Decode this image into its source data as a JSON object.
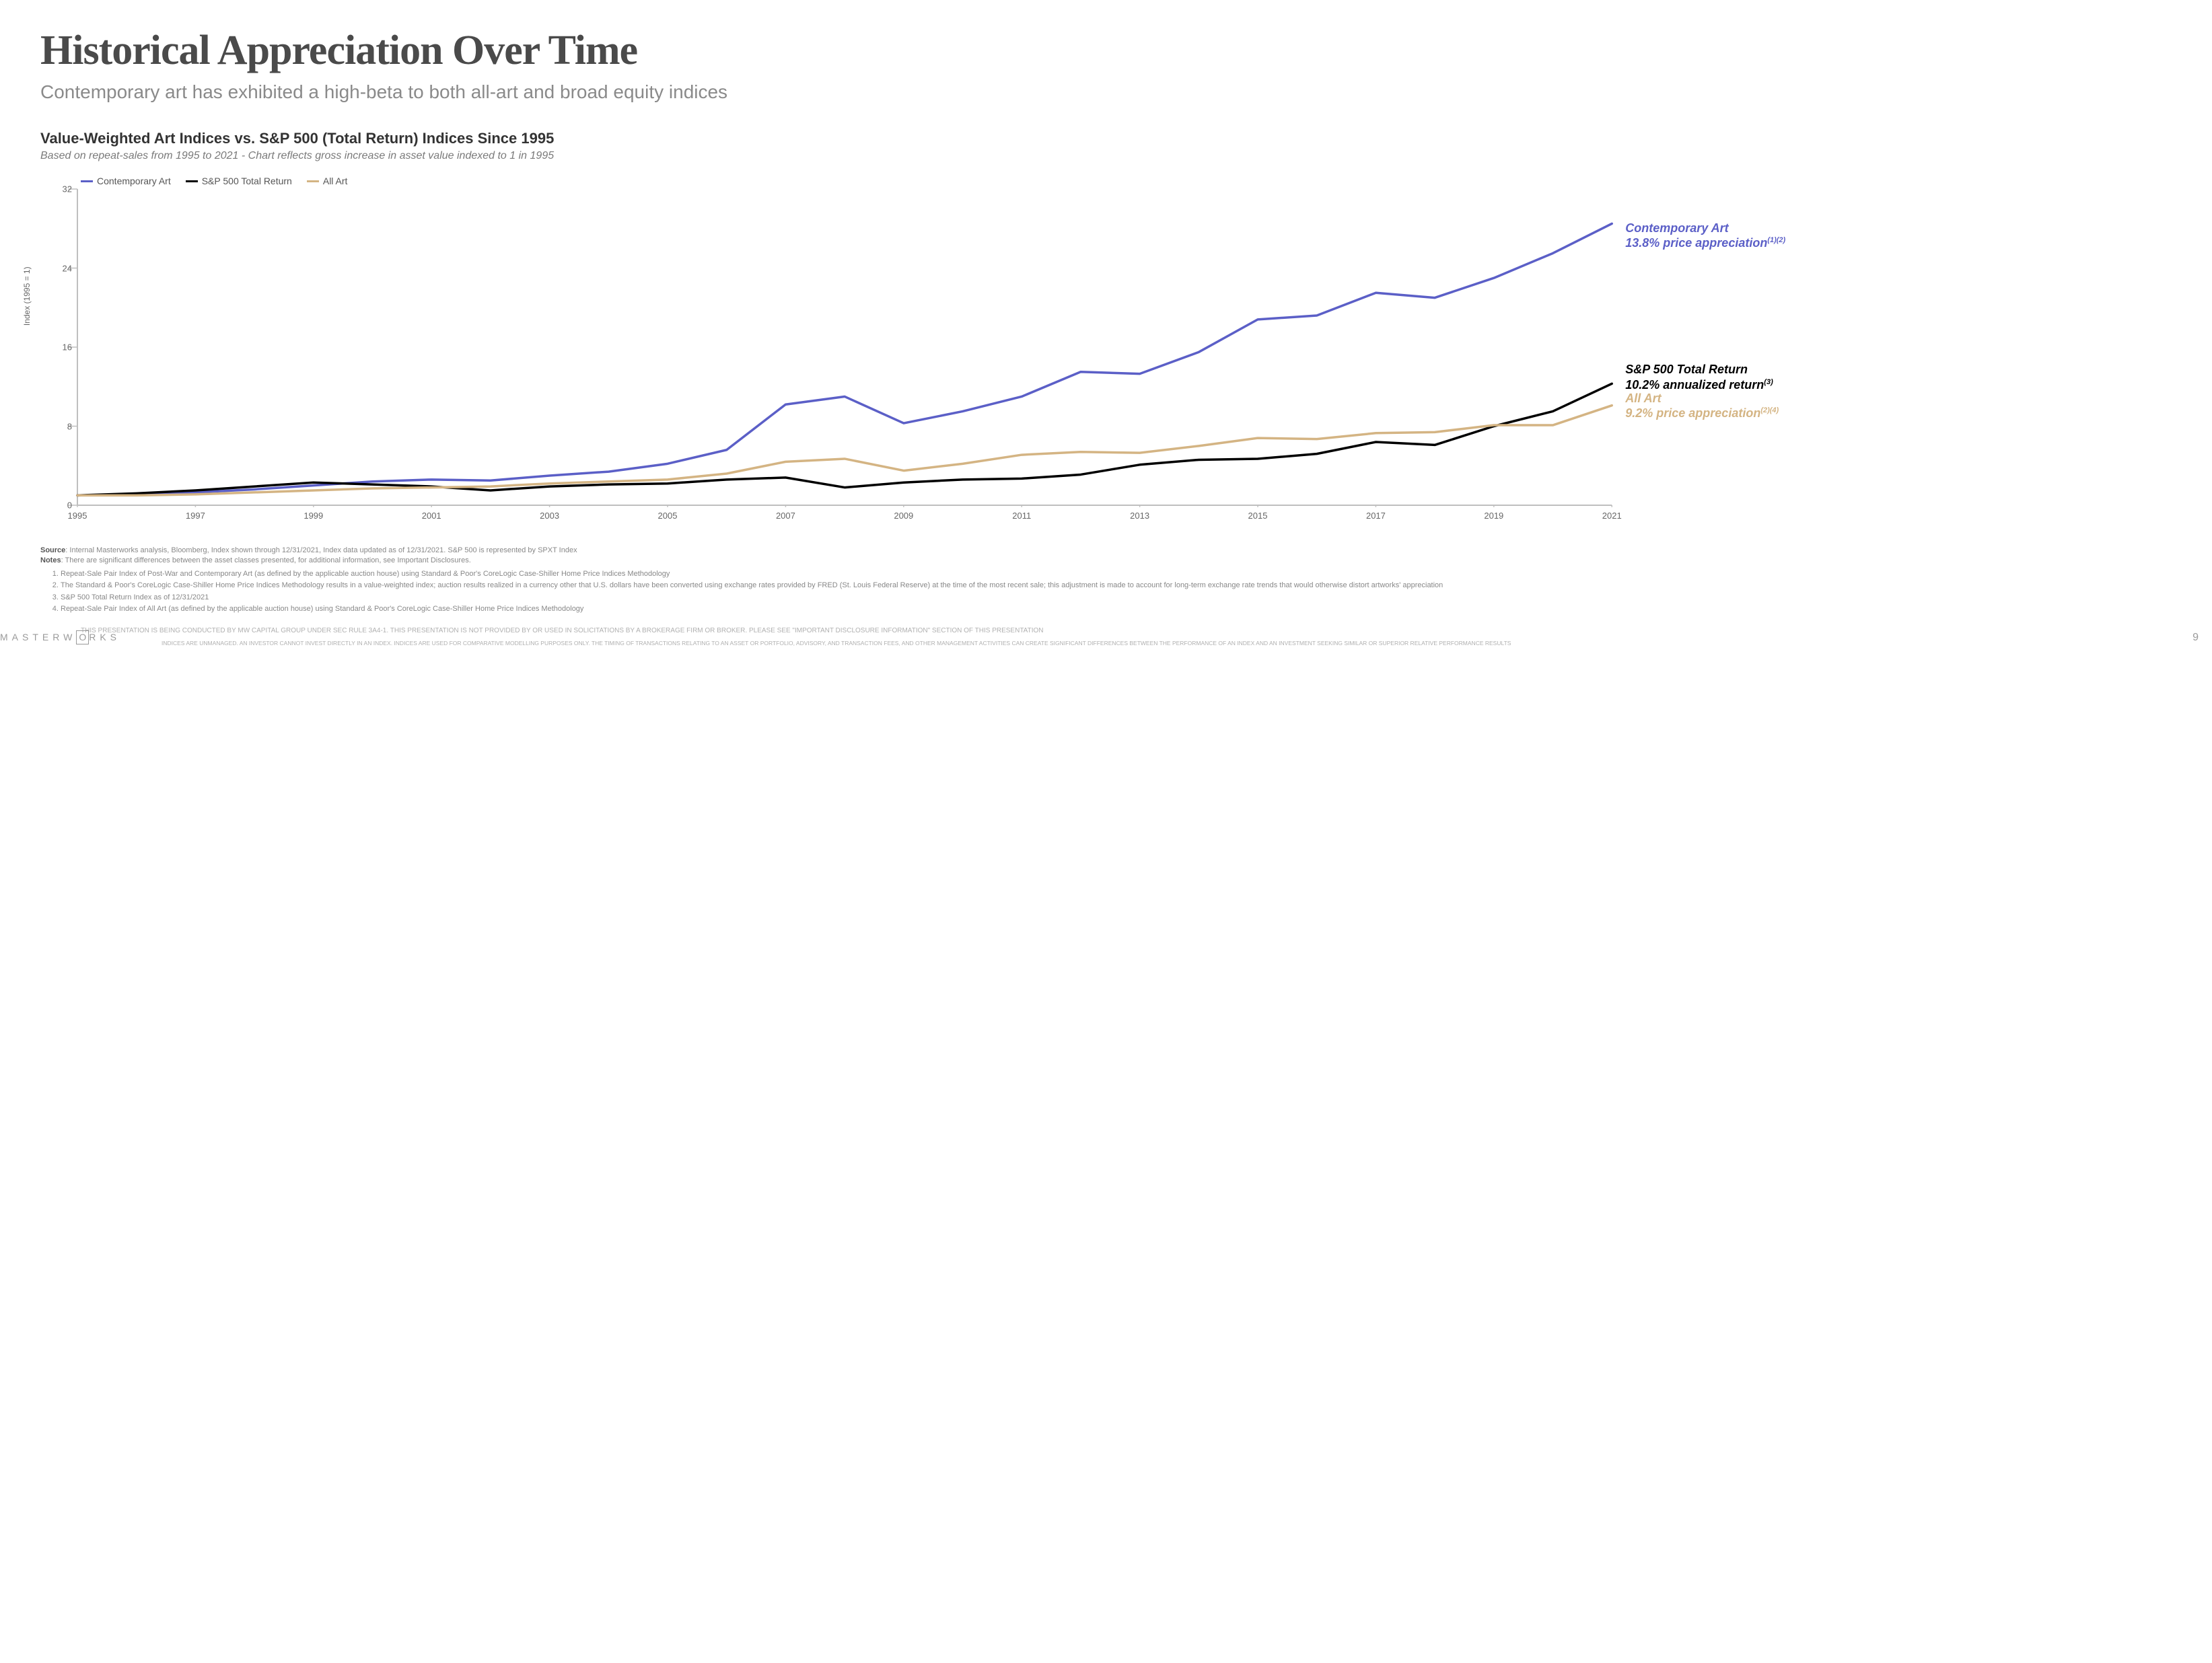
{
  "title": "Historical Appreciation Over Time",
  "subtitle": "Contemporary art has exhibited a high-beta to both all-art and broad equity indices",
  "chart": {
    "type": "line",
    "title": "Value-Weighted Art Indices vs. S&P 500 (Total Return) Indices Since 1995",
    "sub": "Based on repeat-sales from 1995 to 2021 - Chart reflects gross increase in asset value indexed to 1 in 1995",
    "y_label": "Index (1995 = 1)",
    "background_color": "#ffffff",
    "axis_color": "#bfbfbf",
    "tick_label_color": "#666666",
    "tick_fontsize": 13,
    "line_width": 3.5,
    "ylim": [
      0,
      32
    ],
    "yticks": [
      0,
      8,
      16,
      24,
      32
    ],
    "xlim": [
      1995,
      2021
    ],
    "xticks": [
      1995,
      1997,
      1999,
      2001,
      2003,
      2005,
      2007,
      2009,
      2011,
      2013,
      2015,
      2017,
      2019,
      2021
    ],
    "x_values": [
      1995,
      1996,
      1997,
      1998,
      1999,
      2000,
      2001,
      2002,
      2003,
      2004,
      2005,
      2006,
      2007,
      2008,
      2009,
      2010,
      2011,
      2012,
      2013,
      2014,
      2015,
      2016,
      2017,
      2018,
      2019,
      2020,
      2021
    ],
    "series": [
      {
        "key": "contemporary",
        "label": "Contemporary Art",
        "color": "#5b5fc7",
        "values": [
          1.0,
          1.1,
          1.3,
          1.6,
          2.0,
          2.4,
          2.6,
          2.5,
          3.0,
          3.4,
          4.2,
          5.6,
          10.2,
          11.0,
          8.3,
          9.5,
          11.0,
          13.5,
          13.3,
          15.5,
          18.8,
          19.2,
          21.5,
          21.0,
          23.0,
          25.5,
          28.5
        ]
      },
      {
        "key": "sp500",
        "label": "S&P 500 Total Return",
        "color": "#000000",
        "values": [
          1.0,
          1.2,
          1.5,
          1.9,
          2.3,
          2.1,
          1.9,
          1.5,
          1.9,
          2.1,
          2.2,
          2.6,
          2.8,
          1.8,
          2.3,
          2.6,
          2.7,
          3.1,
          4.1,
          4.6,
          4.7,
          5.2,
          6.4,
          6.1,
          8.0,
          9.5,
          12.3
        ]
      },
      {
        "key": "allart",
        "label": "All Art",
        "color": "#d4b483",
        "values": [
          1.0,
          1.0,
          1.1,
          1.3,
          1.5,
          1.7,
          1.8,
          1.9,
          2.2,
          2.4,
          2.6,
          3.2,
          4.4,
          4.7,
          3.5,
          4.2,
          5.1,
          5.4,
          5.3,
          6.0,
          6.8,
          6.7,
          7.3,
          7.4,
          8.1,
          8.1,
          10.1
        ]
      }
    ],
    "legend_fontsize": 14,
    "callouts": [
      {
        "key": "contemporary",
        "line1": "Contemporary Art",
        "line2": "13.8% price appreciation",
        "sup": "(1)(2)",
        "color": "#5b5fc7",
        "top_pct": 10
      },
      {
        "key": "sp500",
        "line1": "S&P 500 Total Return",
        "line2": "10.2% annualized return",
        "sup": "(3)",
        "color": "#000000",
        "top_pct": 55
      },
      {
        "key": "allart",
        "line1": "All Art",
        "line2": "9.2% price appreciation",
        "sup": "(2)(4)",
        "color": "#d4b483",
        "top_pct": 64
      }
    ]
  },
  "source_label": "Source",
  "source_text": ": Internal Masterworks analysis, Bloomberg, Index shown through 12/31/2021, Index data updated as of 12/31/2021. S&P 500 is represented by SPXT Index",
  "notes_label": "Notes",
  "notes_intro": ": There are significant differences between the asset classes presented, for additional information, see Important Disclosures.",
  "notes": [
    "Repeat-Sale Pair Index of Post-War and Contemporary Art (as defined by the applicable auction house) using Standard & Poor's CoreLogic Case-Shiller Home Price Indices Methodology",
    "The Standard & Poor's CoreLogic Case-Shiller Home Price Indices Methodology results in a value-weighted index; auction results realized in a currency other that U.S. dollars have been converted using exchange rates provided by FRED (St. Louis Federal Reserve) at the time of the most recent sale; this adjustment is made to account for long-term exchange rate trends that would otherwise distort artworks' appreciation",
    "S&P 500 Total Return Index as of 12/31/2021",
    "Repeat-Sale Pair Index of All Art (as defined by the applicable auction house) using Standard & Poor's CoreLogic Case-Shiller Home Price Indices Methodology"
  ],
  "footer_line1": "THIS PRESENTATION IS BEING CONDUCTED BY MW CAPITAL GROUP UNDER SEC RULE 3A4-1. THIS PRESENTATION IS NOT PROVIDED BY OR USED IN SOLICITATIONS BY A BROKERAGE FIRM OR BROKER. PLEASE SEE \"IMPORTANT DISCLOSURE INFORMATION\" SECTION OF THIS PRESENTATION",
  "footer_line2": "INDICES ARE UNMANAGED. AN INVESTOR CANNOT INVEST DIRECTLY IN AN INDEX. INDICES ARE USED FOR COMPARATIVE MODELLING PURPOSES ONLY. THE TIMING OF TRANSACTIONS RELATING TO AN ASSET OR PORTFOLIO, ADVISORY, AND TRANSACTION FEES, AND OTHER MANAGEMENT ACTIVITIES CAN CREATE SIGNIFICANT DIFFERENCES BETWEEN THE PERFORMANCE OF AN INDEX AND AN INVESTMENT SEEKING SIMILAR OR SUPERIOR RELATIVE PERFORMANCE RESULTS",
  "brand_pre": "MASTERW",
  "brand_boxed": "O",
  "brand_post": "RKS",
  "page_number": "9"
}
